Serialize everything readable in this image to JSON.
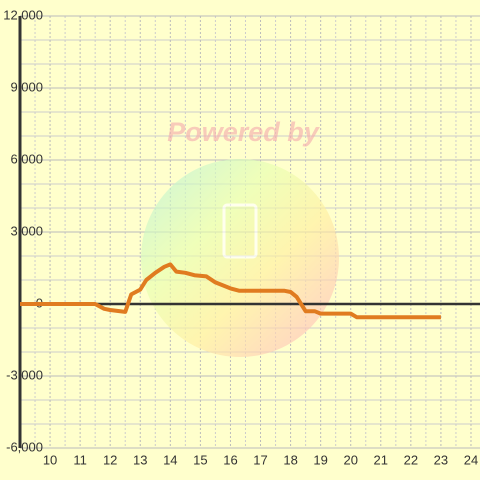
{
  "chart_data": {
    "type": "line",
    "watermark": "Powered by",
    "x": [
      9,
      11.5,
      11.8,
      12,
      12.5,
      12.7,
      13,
      13.2,
      13.5,
      13.8,
      14,
      14.2,
      14.5,
      14.8,
      15.2,
      15.5,
      16,
      16.3,
      17,
      17.8,
      18,
      18.2,
      18.5,
      18.8,
      19,
      20,
      20.2,
      21,
      23
    ],
    "values": [
      0,
      0,
      -200,
      -250,
      -330,
      400,
      600,
      1000,
      1300,
      1550,
      1650,
      1350,
      1300,
      1200,
      1150,
      900,
      650,
      550,
      550,
      550,
      500,
      300,
      -300,
      -300,
      -400,
      -400,
      -550,
      -550,
      -550
    ],
    "color": "#e07b20",
    "xlim": [
      9,
      24.3
    ],
    "xticks": [
      10,
      11,
      12,
      13,
      14,
      15,
      16,
      17,
      18,
      19,
      20,
      21,
      22,
      23,
      24
    ],
    "xminor": [
      9.5,
      10.5,
      11.5,
      12.5,
      13.5,
      14.5,
      15.5,
      16.5,
      17.5,
      18.5,
      19.5,
      20.5,
      21.5,
      22.5,
      23.5
    ],
    "ylim": [
      -6000,
      12000
    ],
    "yticks": [
      {
        "value": -6000,
        "label": "-6,000"
      },
      {
        "value": -3000,
        "label": "-3,000"
      },
      0,
      {
        "value": 3000,
        "label": "3,000"
      },
      {
        "value": 6000,
        "label": "6,000"
      },
      {
        "value": 9000,
        "label": "9,000"
      },
      {
        "value": 12000,
        "label": "12,000"
      }
    ],
    "yminor": [
      -5000,
      -4000,
      -2000,
      -1000,
      1000,
      2000,
      4000,
      5000,
      7000,
      8000,
      10000,
      11000
    ],
    "grid": true
  }
}
